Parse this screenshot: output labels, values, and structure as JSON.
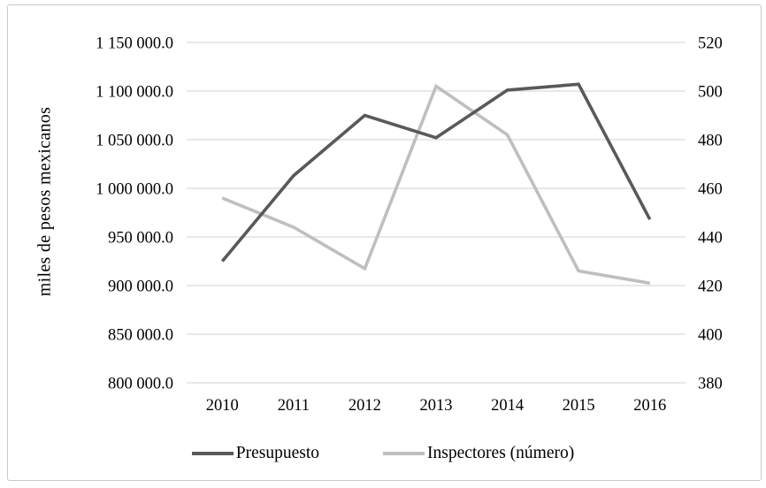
{
  "y_axis_title": "miles de pesos mexicanos",
  "chart_data": {
    "type": "line",
    "title": "",
    "xlabel": "",
    "ylabel": "miles de pesos mexicanos",
    "grid": true,
    "gridline_color": "#d9d9d9",
    "legend_position": "bottom",
    "categories": [
      "2010",
      "2011",
      "2012",
      "2013",
      "2014",
      "2015",
      "2016"
    ],
    "series": [
      {
        "name": "Presupuesto",
        "axis": "left",
        "color": "#595959",
        "values": [
          925000,
          1013000,
          1075000,
          1052000,
          1101000,
          1107000,
          968000
        ]
      },
      {
        "name": "Inspectores (número)",
        "axis": "right",
        "color": "#bfbfbf",
        "values": [
          456,
          444,
          427,
          502,
          482,
          426,
          421
        ]
      }
    ],
    "left_axis": {
      "min": 800000,
      "max": 1150000,
      "step": 50000,
      "tick_labels": [
        "1 150 000.0",
        "1 100 000.0",
        "1 050 000.0",
        "1 000 000.0",
        "950 000.0",
        "900 000.0",
        "850 000.0",
        "800 000.0"
      ]
    },
    "right_axis": {
      "min": 380,
      "max": 520,
      "step": 20,
      "tick_labels": [
        "520",
        "500",
        "480",
        "460",
        "440",
        "420",
        "400",
        "380"
      ]
    }
  }
}
